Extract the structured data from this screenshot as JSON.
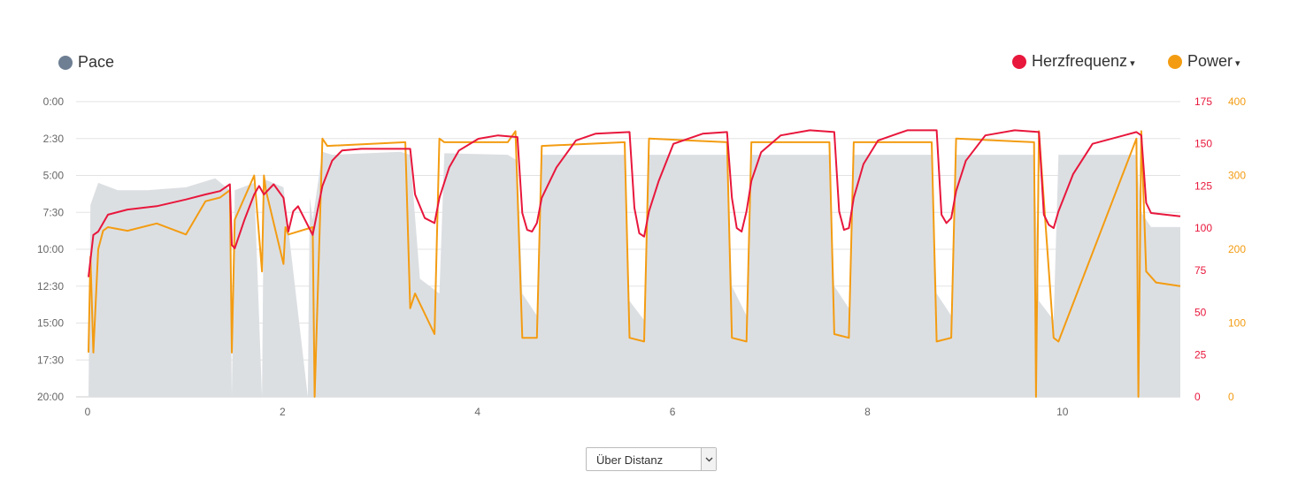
{
  "legend": {
    "pace": {
      "label": "Pace",
      "color": "#6e7f94"
    },
    "heart_rate": {
      "label": "Herzfrequenz",
      "color": "#e8173c",
      "caret": "▾"
    },
    "power": {
      "label": "Power",
      "color": "#f39c12",
      "caret": "▾"
    }
  },
  "axis_select": {
    "value": "Über Distanz",
    "icon": "chevron-down-icon"
  },
  "chart_data": {
    "type": "line",
    "x_axis": {
      "ticks": [
        0,
        2,
        4,
        6,
        8,
        10
      ],
      "range": [
        0,
        11.2
      ]
    },
    "left_axis": {
      "series": "Pace",
      "ticks": [
        "0:00",
        "2:30",
        "5:00",
        "7:30",
        "10:00",
        "12:30",
        "15:00",
        "17:30",
        "20:00"
      ],
      "range_minutes": [
        0,
        20
      ],
      "inverted": true
    },
    "hr_axis": {
      "series": "Herzfrequenz",
      "ticks": [
        0,
        25,
        50,
        75,
        100,
        125,
        150,
        175
      ],
      "range": [
        0,
        175
      ]
    },
    "power_axis": {
      "series": "Power",
      "ticks": [
        0,
        100,
        200,
        300,
        400
      ],
      "range": [
        0,
        400
      ]
    },
    "grid": true,
    "series": [
      {
        "name": "Pace",
        "type": "area",
        "color": "#dcdfe2",
        "x": [
          0,
          0.02,
          0.1,
          0.3,
          0.6,
          1.0,
          1.3,
          1.45,
          1.47,
          1.5,
          1.7,
          1.78,
          1.8,
          1.82,
          2.0,
          2.25,
          2.27,
          2.3,
          2.4,
          2.5,
          3.2,
          3.3,
          3.4,
          3.6,
          3.65,
          4.3,
          4.4,
          4.45,
          4.6,
          4.65,
          5.5,
          5.55,
          5.7,
          5.75,
          6.55,
          6.6,
          6.75,
          6.8,
          7.6,
          7.65,
          7.8,
          7.85,
          8.65,
          8.7,
          8.85,
          8.9,
          9.7,
          9.75,
          9.9,
          9.95,
          10.75,
          10.8,
          10.9,
          11.2
        ],
        "y": [
          20,
          7.0,
          5.5,
          6.0,
          6.0,
          5.8,
          5.2,
          6.0,
          20,
          6.0,
          5.5,
          20,
          5.5,
          5.3,
          5.8,
          20,
          6.5,
          8.0,
          3.4,
          3.6,
          3.4,
          3.6,
          12.0,
          13.0,
          3.5,
          3.6,
          4.0,
          13.0,
          14.5,
          3.6,
          3.6,
          13.5,
          14.8,
          3.6,
          3.6,
          12.5,
          14.5,
          3.6,
          3.6,
          12.5,
          14.0,
          3.6,
          3.6,
          13.0,
          14.5,
          3.6,
          3.6,
          13.5,
          14.8,
          3.6,
          3.6,
          7.5,
          8.5,
          8.5
        ]
      },
      {
        "name": "Herzfrequenz",
        "x": [
          0,
          0.05,
          0.1,
          0.2,
          0.4,
          0.7,
          1.0,
          1.2,
          1.35,
          1.45,
          1.47,
          1.5,
          1.6,
          1.7,
          1.75,
          1.8,
          1.9,
          2.0,
          2.05,
          2.1,
          2.15,
          2.3,
          2.4,
          2.5,
          2.6,
          2.8,
          3.0,
          3.3,
          3.35,
          3.45,
          3.55,
          3.6,
          3.7,
          3.8,
          4.0,
          4.2,
          4.4,
          4.45,
          4.5,
          4.55,
          4.6,
          4.65,
          4.8,
          5.0,
          5.2,
          5.55,
          5.6,
          5.65,
          5.7,
          5.75,
          5.85,
          6.0,
          6.3,
          6.55,
          6.6,
          6.65,
          6.7,
          6.75,
          6.8,
          6.9,
          7.1,
          7.4,
          7.65,
          7.7,
          7.75,
          7.8,
          7.85,
          7.95,
          8.1,
          8.4,
          8.7,
          8.75,
          8.8,
          8.85,
          8.9,
          9.0,
          9.2,
          9.5,
          9.75,
          9.8,
          9.85,
          9.9,
          9.95,
          10.1,
          10.3,
          10.75,
          10.8,
          10.85,
          10.9,
          11.2
        ],
        "y": [
          71,
          96,
          98,
          108,
          111,
          113,
          117,
          120,
          122,
          126,
          90,
          88,
          105,
          120,
          125,
          120,
          126,
          118,
          98,
          110,
          113,
          96,
          125,
          140,
          146,
          147,
          147,
          147,
          120,
          106,
          103,
          118,
          136,
          146,
          153,
          155,
          154,
          109,
          99,
          98,
          103,
          118,
          136,
          152,
          156,
          157,
          112,
          97,
          95,
          110,
          128,
          150,
          156,
          157,
          118,
          100,
          98,
          110,
          128,
          145,
          155,
          158,
          157,
          110,
          99,
          100,
          118,
          138,
          152,
          158,
          158,
          108,
          103,
          106,
          122,
          140,
          155,
          158,
          157,
          108,
          102,
          100,
          110,
          132,
          150,
          157,
          155,
          115,
          109,
          107
        ]
      },
      {
        "name": "Power",
        "x": [
          0,
          0.02,
          0.05,
          0.1,
          0.15,
          0.2,
          0.4,
          0.7,
          1.0,
          1.2,
          1.35,
          1.45,
          1.47,
          1.5,
          1.7,
          1.78,
          1.8,
          1.82,
          2.0,
          2.02,
          2.05,
          2.3,
          2.32,
          2.4,
          2.45,
          3.25,
          3.3,
          3.35,
          3.55,
          3.6,
          3.65,
          4.3,
          4.38,
          4.45,
          4.6,
          4.65,
          5.5,
          5.55,
          5.7,
          5.75,
          6.55,
          6.6,
          6.75,
          6.8,
          7.6,
          7.65,
          7.8,
          7.85,
          8.65,
          8.7,
          8.85,
          8.9,
          9.7,
          9.72,
          9.75,
          9.9,
          9.95,
          10.75,
          10.77,
          10.8,
          10.85,
          10.95,
          11.2
        ],
        "y": [
          60,
          190,
          60,
          200,
          225,
          230,
          225,
          235,
          220,
          265,
          270,
          280,
          60,
          240,
          300,
          170,
          300,
          280,
          180,
          230,
          220,
          230,
          0,
          350,
          340,
          345,
          120,
          140,
          85,
          350,
          345,
          345,
          360,
          80,
          80,
          340,
          345,
          80,
          75,
          350,
          345,
          80,
          75,
          345,
          345,
          85,
          80,
          345,
          345,
          75,
          80,
          350,
          345,
          0,
          360,
          80,
          75,
          350,
          0,
          360,
          170,
          155,
          150
        ]
      }
    ]
  }
}
